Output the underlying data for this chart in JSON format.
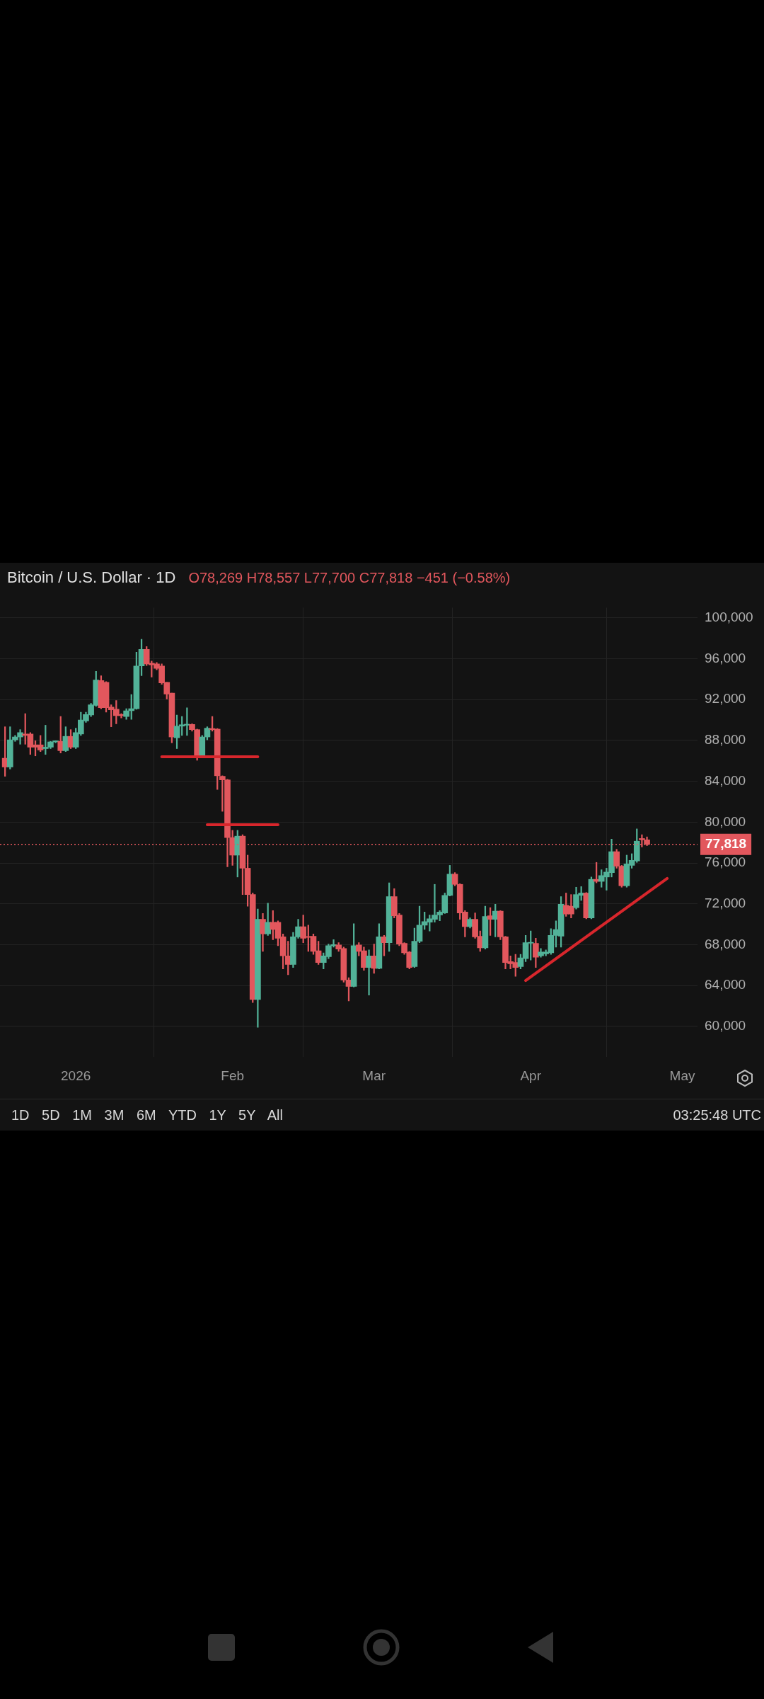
{
  "chart_data": {
    "type": "candlestick",
    "title": "Bitcoin / U.S. Dollar · 1D",
    "subtitle": "O78,269 H78,557 L77,700 C77,818 −451 (−0.58%)",
    "annotations": [
      "1D 5D 1M 3M 6M YTD 1Y 5Y All",
      "03:25:48 UTC"
    ],
    "x": [
      "2025-12-18",
      "2025-12-19",
      "2025-12-20",
      "2025-12-21",
      "2025-12-22",
      "2025-12-23",
      "2025-12-24",
      "2025-12-25",
      "2025-12-26",
      "2025-12-27",
      "2025-12-28",
      "2025-12-29",
      "2025-12-30",
      "2025-12-31",
      "2026-01-01",
      "2026-01-02",
      "2026-01-03",
      "2026-01-04",
      "2026-01-05",
      "2026-01-06",
      "2026-01-07",
      "2026-01-08",
      "2026-01-09",
      "2026-01-10",
      "2026-01-11",
      "2026-01-12",
      "2026-01-13",
      "2026-01-14",
      "2026-01-15",
      "2026-01-16",
      "2026-01-17",
      "2026-01-18",
      "2026-01-19",
      "2026-01-20",
      "2026-01-21",
      "2026-01-22",
      "2026-01-23",
      "2026-01-24",
      "2026-01-25",
      "2026-01-26",
      "2026-01-27",
      "2026-01-28",
      "2026-01-29",
      "2026-01-30",
      "2026-01-31",
      "2026-02-01",
      "2026-02-02",
      "2026-02-03",
      "2026-02-04",
      "2026-02-05",
      "2026-02-06",
      "2026-02-07",
      "2026-02-08",
      "2026-02-09",
      "2026-02-10",
      "2026-02-11",
      "2026-02-12",
      "2026-02-13",
      "2026-02-14",
      "2026-02-15",
      "2026-02-16",
      "2026-02-17",
      "2026-02-18",
      "2026-02-19",
      "2026-02-20",
      "2026-02-21",
      "2026-02-22",
      "2026-02-23",
      "2026-02-24",
      "2026-02-25",
      "2026-02-26",
      "2026-02-27",
      "2026-02-28",
      "2026-03-01",
      "2026-03-02",
      "2026-03-03",
      "2026-03-04",
      "2026-03-05",
      "2026-03-06",
      "2026-03-07",
      "2026-03-08",
      "2026-03-09",
      "2026-03-10",
      "2026-03-11",
      "2026-03-12",
      "2026-03-13",
      "2026-03-14",
      "2026-03-15",
      "2026-03-16",
      "2026-03-17",
      "2026-03-18",
      "2026-03-19",
      "2026-03-20",
      "2026-03-21",
      "2026-03-22",
      "2026-03-23",
      "2026-03-24",
      "2026-03-25",
      "2026-03-26",
      "2026-03-27",
      "2026-03-28",
      "2026-03-29",
      "2026-03-30",
      "2026-03-31",
      "2026-04-01",
      "2026-04-02",
      "2026-04-03",
      "2026-04-04",
      "2026-04-05",
      "2026-04-06",
      "2026-04-07",
      "2026-04-08",
      "2026-04-09",
      "2026-04-10",
      "2026-04-11",
      "2026-04-12",
      "2026-04-13",
      "2026-04-14",
      "2026-04-15",
      "2026-04-16",
      "2026-04-17",
      "2026-04-18",
      "2026-04-19",
      "2026-04-20",
      "2026-04-21",
      "2026-04-22",
      "2026-04-23",
      "2026-04-24"
    ],
    "ohlc": [
      [
        86260,
        89340,
        84490,
        85400
      ],
      [
        85400,
        89340,
        85200,
        88060
      ],
      [
        88060,
        88490,
        87910,
        88340
      ],
      [
        88340,
        89060,
        87630,
        88770
      ],
      [
        88630,
        90630,
        87630,
        88490
      ],
      [
        88630,
        88770,
        86630,
        87340
      ],
      [
        87570,
        87970,
        86490,
        87340
      ],
      [
        87570,
        88490,
        86910,
        87060
      ],
      [
        87200,
        89490,
        86630,
        87340
      ],
      [
        87340,
        87910,
        87200,
        87860
      ],
      [
        87860,
        87970,
        87770,
        87910
      ],
      [
        87910,
        90340,
        86770,
        87000
      ],
      [
        87000,
        89340,
        86910,
        88400
      ],
      [
        88400,
        89060,
        87200,
        87340
      ],
      [
        87340,
        89200,
        87200,
        88770
      ],
      [
        88630,
        90770,
        88490,
        90000
      ],
      [
        89910,
        90770,
        89770,
        90540
      ],
      [
        90490,
        91630,
        90340,
        91490
      ],
      [
        91430,
        94770,
        91340,
        93910
      ],
      [
        93860,
        94340,
        91110,
        91200
      ],
      [
        93690,
        93770,
        90770,
        91200
      ],
      [
        91260,
        91490,
        89340,
        91000
      ],
      [
        91060,
        91910,
        89630,
        90430
      ],
      [
        90490,
        90630,
        90200,
        90430
      ],
      [
        90340,
        91110,
        90060,
        90910
      ],
      [
        90910,
        92490,
        90060,
        91110
      ],
      [
        91110,
        96630,
        91060,
        95290
      ],
      [
        95290,
        97910,
        94340,
        96910
      ],
      [
        96910,
        97200,
        95340,
        95490
      ],
      [
        95570,
        95770,
        94200,
        95400
      ],
      [
        95490,
        95630,
        94910,
        95060
      ],
      [
        95290,
        95490,
        93490,
        93630
      ],
      [
        93690,
        93690,
        92060,
        92540
      ],
      [
        92630,
        92630,
        87770,
        88340
      ],
      [
        88260,
        90490,
        87200,
        89400
      ],
      [
        89400,
        90340,
        88490,
        89540
      ],
      [
        89490,
        91200,
        88490,
        89570
      ],
      [
        89570,
        89630,
        88910,
        89060
      ],
      [
        89060,
        89110,
        86060,
        86540
      ],
      [
        86540,
        88490,
        86490,
        88340
      ],
      [
        88340,
        89340,
        88060,
        89200
      ],
      [
        89170,
        90340,
        88910,
        89060
      ],
      [
        89110,
        89170,
        83200,
        84540
      ],
      [
        84490,
        84540,
        81060,
        84140
      ],
      [
        84140,
        84200,
        75630,
        78490
      ],
      [
        78490,
        79200,
        75770,
        76770
      ],
      [
        76770,
        79200,
        74630,
        78630
      ],
      [
        78630,
        78770,
        72910,
        75490
      ],
      [
        75490,
        76770,
        71770,
        72910
      ],
      [
        72910,
        73060,
        62340,
        62630
      ],
      [
        62630,
        71490,
        59910,
        70490
      ],
      [
        70490,
        71060,
        67340,
        69060
      ],
      [
        69060,
        72060,
        68910,
        70200
      ],
      [
        70200,
        71340,
        68490,
        69490
      ],
      [
        70200,
        70340,
        67910,
        68630
      ],
      [
        68770,
        69060,
        65630,
        66910
      ],
      [
        66910,
        68340,
        65060,
        66060
      ],
      [
        66060,
        69200,
        65770,
        68770
      ],
      [
        68770,
        70490,
        68630,
        69770
      ],
      [
        69770,
        70910,
        68200,
        68630
      ],
      [
        68770,
        69910,
        67340,
        68710
      ],
      [
        68830,
        69060,
        67060,
        67340
      ],
      [
        67400,
        68340,
        66060,
        66260
      ],
      [
        66260,
        67200,
        65630,
        66910
      ],
      [
        66830,
        68060,
        66630,
        67910
      ],
      [
        67910,
        68490,
        67770,
        67970
      ],
      [
        67970,
        68200,
        67340,
        67570
      ],
      [
        67630,
        67770,
        64340,
        64540
      ],
      [
        64540,
        64770,
        62490,
        63910
      ],
      [
        63910,
        70060,
        63860,
        67910
      ],
      [
        67970,
        68200,
        66910,
        67340
      ],
      [
        67400,
        67770,
        65490,
        65770
      ],
      [
        65770,
        67490,
        63060,
        66910
      ],
      [
        66910,
        68060,
        65200,
        65690
      ],
      [
        65690,
        70060,
        65630,
        68770
      ],
      [
        68770,
        68910,
        66910,
        68200
      ],
      [
        68200,
        74060,
        67340,
        72710
      ],
      [
        72710,
        73490,
        70630,
        70830
      ],
      [
        70910,
        71060,
        67910,
        68060
      ],
      [
        68140,
        68200,
        67060,
        67200
      ],
      [
        67290,
        67340,
        65630,
        65770
      ],
      [
        65860,
        69630,
        65770,
        68340
      ],
      [
        68340,
        71770,
        68200,
        69910
      ],
      [
        69910,
        71200,
        69490,
        70260
      ],
      [
        70200,
        70910,
        69340,
        70540
      ],
      [
        70490,
        73910,
        70200,
        70910
      ],
      [
        70910,
        71340,
        70340,
        71200
      ],
      [
        71110,
        73060,
        71060,
        72830
      ],
      [
        72830,
        75770,
        72770,
        74910
      ],
      [
        74910,
        75060,
        73770,
        73910
      ],
      [
        73910,
        73970,
        70490,
        71110
      ],
      [
        71200,
        71340,
        68770,
        69770
      ],
      [
        69770,
        70630,
        69630,
        70490
      ],
      [
        70490,
        71110,
        68630,
        68770
      ],
      [
        68830,
        69340,
        67340,
        67690
      ],
      [
        67690,
        71770,
        67570,
        70770
      ],
      [
        70830,
        71630,
        68910,
        70490
      ],
      [
        70490,
        71970,
        68770,
        71290
      ],
      [
        71290,
        71340,
        68490,
        68770
      ],
      [
        68770,
        68830,
        65630,
        66260
      ],
      [
        66340,
        66910,
        65630,
        66140
      ],
      [
        66260,
        67060,
        64910,
        65770
      ],
      [
        65860,
        67060,
        65630,
        66710
      ],
      [
        66630,
        68910,
        66340,
        68200
      ],
      [
        68140,
        69340,
        66490,
        68200
      ],
      [
        68140,
        68630,
        65770,
        66770
      ],
      [
        66910,
        67630,
        66770,
        67290
      ],
      [
        67110,
        67490,
        66910,
        67290
      ],
      [
        67200,
        69570,
        67060,
        68910
      ],
      [
        68910,
        70340,
        67770,
        69490
      ],
      [
        68830,
        72710,
        67770,
        71970
      ],
      [
        71860,
        73060,
        70770,
        71000
      ],
      [
        71770,
        72910,
        70630,
        71000
      ],
      [
        71630,
        73630,
        71490,
        72910
      ],
      [
        72830,
        73690,
        72340,
        73060
      ],
      [
        73060,
        73110,
        70540,
        70630
      ],
      [
        70630,
        74630,
        70540,
        74400
      ],
      [
        74400,
        76060,
        74060,
        74200
      ],
      [
        74200,
        75340,
        73630,
        74770
      ],
      [
        74630,
        75490,
        73340,
        75110
      ],
      [
        75060,
        78340,
        74630,
        77110
      ],
      [
        77110,
        77340,
        75490,
        75690
      ],
      [
        75690,
        75770,
        73630,
        73770
      ],
      [
        73770,
        76770,
        73630,
        75910
      ],
      [
        75770,
        76910,
        75490,
        76260
      ],
      [
        76200,
        79340,
        76060,
        78140
      ],
      [
        78400,
        78770,
        77570,
        78270
      ],
      [
        78269,
        78557,
        77700,
        77818
      ]
    ],
    "colors": [
      "#e2575d",
      "#52b298",
      "#52b298",
      "#52b298",
      "#e2575d",
      "#e2575d",
      "#e2575d",
      "#e2575d",
      "#52b298",
      "#52b298",
      "#52b298",
      "#e2575d",
      "#52b298",
      "#e2575d",
      "#52b298",
      "#52b298",
      "#52b298",
      "#52b298",
      "#52b298",
      "#e2575d",
      "#e2575d",
      "#e2575d",
      "#e2575d",
      "#e2575d",
      "#52b298",
      "#52b298",
      "#52b298",
      "#52b298",
      "#e2575d",
      "#e2575d",
      "#e2575d",
      "#e2575d",
      "#e2575d",
      "#e2575d",
      "#52b298",
      "#52b298",
      "#52b298",
      "#e2575d",
      "#e2575d",
      "#52b298",
      "#52b298",
      "#e2575d",
      "#e2575d",
      "#e2575d",
      "#e2575d",
      "#e2575d",
      "#52b298",
      "#e2575d",
      "#e2575d",
      "#e2575d",
      "#52b298",
      "#e2575d",
      "#52b298",
      "#e2575d",
      "#e2575d",
      "#e2575d",
      "#e2575d",
      "#52b298",
      "#52b298",
      "#e2575d",
      "#e2575d",
      "#e2575d",
      "#e2575d",
      "#52b298",
      "#52b298",
      "#52b298",
      "#e2575d",
      "#e2575d",
      "#e2575d",
      "#52b298",
      "#e2575d",
      "#e2575d",
      "#52b298",
      "#e2575d",
      "#52b298",
      "#e2575d",
      "#52b298",
      "#e2575d",
      "#e2575d",
      "#e2575d",
      "#e2575d",
      "#52b298",
      "#52b298",
      "#52b298",
      "#52b298",
      "#52b298",
      "#52b298",
      "#52b298",
      "#52b298",
      "#e2575d",
      "#e2575d",
      "#e2575d",
      "#52b298",
      "#e2575d",
      "#e2575d",
      "#52b298",
      "#e2575d",
      "#52b298",
      "#e2575d",
      "#e2575d",
      "#e2575d",
      "#e2575d",
      "#52b298",
      "#52b298",
      "#52b298",
      "#e2575d",
      "#52b298",
      "#52b298",
      "#52b298",
      "#52b298",
      "#52b298",
      "#e2575d",
      "#e2575d",
      "#52b298",
      "#52b298",
      "#e2575d",
      "#52b298",
      "#e2575d",
      "#52b298",
      "#52b298",
      "#52b298",
      "#e2575d",
      "#e2575d",
      "#52b298",
      "#52b298",
      "#52b298",
      "#e2575d",
      "#e2575d"
    ],
    "series": [
      {
        "type": "line",
        "x": [
          "2026-01-18",
          "2026-02-06"
        ],
        "values": [
          86400,
          86400
        ],
        "color": "#d8262c"
      },
      {
        "type": "line",
        "x": [
          "2026-01-27",
          "2026-02-10"
        ],
        "values": [
          79750,
          79750
        ],
        "color": "#d8262c"
      },
      {
        "type": "line",
        "x": [
          "2026-03-31",
          "2026-04-28"
        ],
        "values": [
          64490,
          74490
        ],
        "color": "#d8262c"
      }
    ],
    "marker": "none",
    "line_style": "solid",
    "ref_lines": [
      {
        "axis": "y",
        "value": 77818,
        "label": "77,818",
        "color": "#e2575d",
        "line_style": "dotted"
      }
    ],
    "xlim": [
      "2025-12-17",
      "2026-05-04"
    ],
    "xticks": [
      {
        "value": "2026-01-01",
        "label": "2026"
      },
      {
        "value": "2026-02-01",
        "label": "Feb"
      },
      {
        "value": "2026-03-01",
        "label": "Mar"
      },
      {
        "value": "2026-04-01",
        "label": "Apr"
      },
      {
        "value": "2026-05-01",
        "label": "May"
      }
    ],
    "ylim": [
      57000,
      101000
    ],
    "yticks": [
      {
        "value": 60000,
        "label": "60,000"
      },
      {
        "value": 64000,
        "label": "64,000"
      },
      {
        "value": 68000,
        "label": "68,000"
      },
      {
        "value": 72000,
        "label": "72,000"
      },
      {
        "value": 76000,
        "label": "76,000"
      },
      {
        "value": 80000,
        "label": "80,000"
      },
      {
        "value": 84000,
        "label": "84,000"
      },
      {
        "value": 88000,
        "label": "88,000"
      },
      {
        "value": 92000,
        "label": "92,000"
      },
      {
        "value": 96000,
        "label": "96,000"
      },
      {
        "value": 100000,
        "label": "100,000"
      }
    ],
    "grid": true,
    "legend": false
  }
}
